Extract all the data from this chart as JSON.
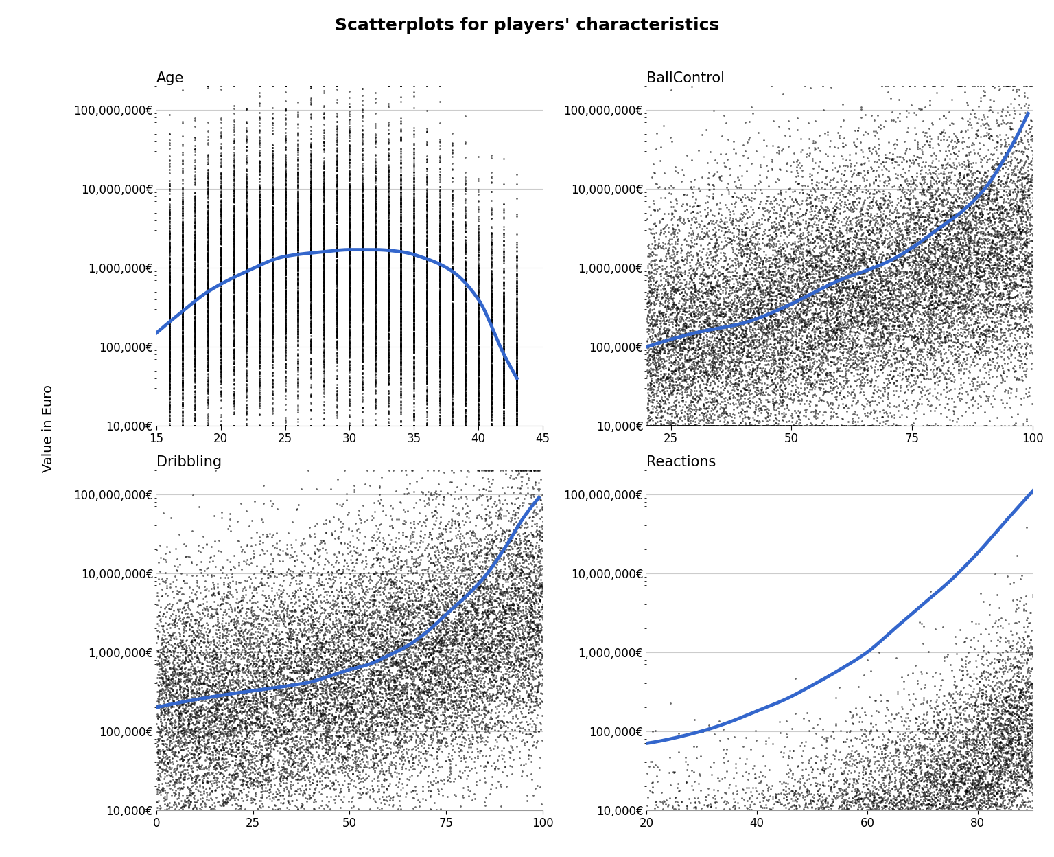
{
  "title": "Scatterplots for players' characteristics",
  "ylabel": "Value in Euro",
  "subplots": [
    {
      "title": "Age",
      "xlabel_range": [
        15,
        45
      ],
      "x_ticks": [
        15,
        20,
        25,
        30,
        35,
        40,
        45
      ],
      "x_min": 15,
      "x_max": 45,
      "y_min": 10000,
      "y_max": 200000000,
      "smooth_x": [
        15,
        17,
        19,
        22,
        25,
        28,
        30,
        32,
        34,
        36,
        38,
        40,
        42,
        43
      ],
      "smooth_y": [
        150000,
        280000,
        500000,
        900000,
        1400000,
        1600000,
        1700000,
        1700000,
        1600000,
        1300000,
        900000,
        400000,
        80000,
        40000
      ]
    },
    {
      "title": "BallControl",
      "xlabel_range": [
        20,
        100
      ],
      "x_ticks": [
        25,
        50,
        75,
        100
      ],
      "x_min": 20,
      "x_max": 100,
      "y_min": 10000,
      "y_max": 200000000,
      "smooth_x": [
        20,
        30,
        40,
        50,
        55,
        60,
        65,
        70,
        75,
        80,
        85,
        90,
        95,
        99
      ],
      "smooth_y": [
        100000,
        150000,
        200000,
        350000,
        500000,
        700000,
        900000,
        1200000,
        1800000,
        3000000,
        5000000,
        10000000,
        30000000,
        90000000
      ]
    },
    {
      "title": "Dribbling",
      "xlabel_range": [
        0,
        100
      ],
      "x_ticks": [
        0,
        25,
        50,
        75,
        100
      ],
      "x_min": 0,
      "x_max": 100,
      "y_min": 10000,
      "y_max": 200000000,
      "smooth_x": [
        0,
        10,
        20,
        30,
        35,
        40,
        45,
        50,
        55,
        60,
        65,
        70,
        75,
        80,
        85,
        90,
        95,
        99
      ],
      "smooth_y": [
        200000,
        250000,
        300000,
        350000,
        380000,
        420000,
        500000,
        600000,
        700000,
        900000,
        1200000,
        1800000,
        3000000,
        5000000,
        9000000,
        20000000,
        50000000,
        90000000
      ]
    },
    {
      "title": "Reactions",
      "xlabel_range": [
        20,
        90
      ],
      "x_ticks": [
        20,
        40,
        60,
        80
      ],
      "x_min": 20,
      "x_max": 90,
      "y_min": 10000,
      "y_max": 200000000,
      "smooth_x": [
        20,
        30,
        35,
        40,
        45,
        50,
        55,
        60,
        65,
        70,
        75,
        80,
        85,
        90
      ],
      "smooth_y": [
        70000,
        100000,
        130000,
        180000,
        250000,
        380000,
        600000,
        1000000,
        2000000,
        4000000,
        8000000,
        18000000,
        45000000,
        110000000
      ]
    }
  ],
  "dot_color": "#000000",
  "line_color": "#3366cc",
  "background_color": "#ffffff",
  "dot_size": 4,
  "line_width": 3.5,
  "title_fontsize": 18,
  "axis_title_fontsize": 15,
  "tick_fontsize": 12,
  "ylabel_fontsize": 14
}
